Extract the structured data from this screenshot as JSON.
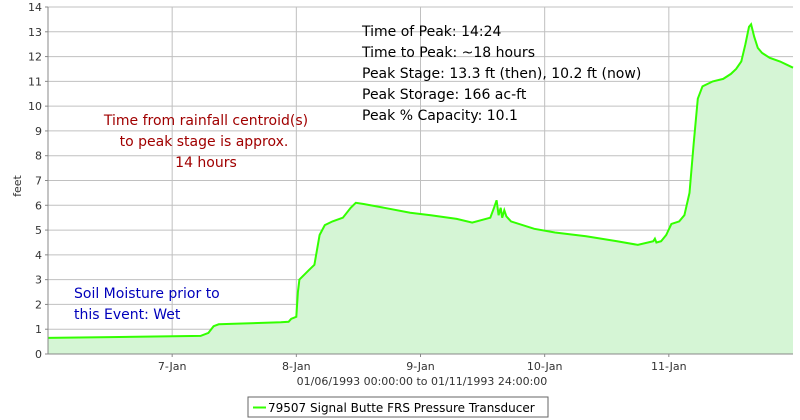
{
  "colors": {
    "fill": "#d5f5d5",
    "line": "#33ff00",
    "grid": "#c0c0c0",
    "axis": "#888888",
    "red_text": "#a00000",
    "blue_text": "#0000bb",
    "black_text": "#000000"
  },
  "chart_data": {
    "type": "area",
    "ylabel": "feet",
    "xlabel": "01/06/1993 00:00:00 to 01/11/1993 24:00:00",
    "ylim": [
      0,
      14
    ],
    "y_ticks": [
      0,
      1,
      2,
      3,
      4,
      5,
      6,
      7,
      8,
      9,
      10,
      11,
      12,
      13,
      14
    ],
    "xlim_hours": [
      0,
      144
    ],
    "x_ticks": [
      {
        "label": "7-Jan",
        "hour": 24
      },
      {
        "label": "8-Jan",
        "hour": 48
      },
      {
        "label": "9-Jan",
        "hour": 72
      },
      {
        "label": "10-Jan",
        "hour": 96
      },
      {
        "label": "11-Jan",
        "hour": 120
      }
    ],
    "grid": true,
    "legend_position": "bottom-center",
    "series": [
      {
        "name": "79507 Signal Butte FRS Pressure Transducer",
        "points": [
          [
            0,
            0.65
          ],
          [
            12,
            0.68
          ],
          [
            29.5,
            0.73
          ],
          [
            31,
            0.85
          ],
          [
            32,
            1.12
          ],
          [
            33,
            1.2
          ],
          [
            36,
            1.22
          ],
          [
            45,
            1.28
          ],
          [
            46.5,
            1.3
          ],
          [
            47,
            1.42
          ],
          [
            48,
            1.5
          ],
          [
            48.3,
            2.5
          ],
          [
            48.6,
            3.0
          ],
          [
            50.5,
            3.4
          ],
          [
            51.5,
            3.6
          ],
          [
            52.5,
            4.8
          ],
          [
            53.5,
            5.2
          ],
          [
            55,
            5.35
          ],
          [
            57,
            5.5
          ],
          [
            58.5,
            5.9
          ],
          [
            59.5,
            6.1
          ],
          [
            61,
            6.05
          ],
          [
            65,
            5.9
          ],
          [
            70,
            5.7
          ],
          [
            74,
            5.6
          ],
          [
            79,
            5.45
          ],
          [
            82,
            5.3
          ],
          [
            85.5,
            5.5
          ],
          [
            86.2,
            5.9
          ],
          [
            86.7,
            6.2
          ],
          [
            87.1,
            5.6
          ],
          [
            87.5,
            5.9
          ],
          [
            87.8,
            5.5
          ],
          [
            88.2,
            5.8
          ],
          [
            88.6,
            5.55
          ],
          [
            89.5,
            5.35
          ],
          [
            94,
            5.05
          ],
          [
            98,
            4.9
          ],
          [
            104,
            4.75
          ],
          [
            110,
            4.55
          ],
          [
            114,
            4.4
          ],
          [
            117,
            4.55
          ],
          [
            117.3,
            4.65
          ],
          [
            117.6,
            4.5
          ],
          [
            118.5,
            4.55
          ],
          [
            119.5,
            4.8
          ],
          [
            120.5,
            5.25
          ],
          [
            122,
            5.35
          ],
          [
            123,
            5.6
          ],
          [
            124,
            6.5
          ],
          [
            124.8,
            8.5
          ],
          [
            125.6,
            10.3
          ],
          [
            126.5,
            10.8
          ],
          [
            128.5,
            11.0
          ],
          [
            130.5,
            11.1
          ],
          [
            132,
            11.3
          ],
          [
            133,
            11.5
          ],
          [
            134,
            11.8
          ],
          [
            134.8,
            12.5
          ],
          [
            135.5,
            13.2
          ],
          [
            135.9,
            13.3
          ],
          [
            136.5,
            12.8
          ],
          [
            137.2,
            12.35
          ],
          [
            138,
            12.15
          ],
          [
            139.5,
            11.95
          ],
          [
            141.5,
            11.8
          ],
          [
            143,
            11.65
          ],
          [
            144,
            11.55
          ]
        ]
      }
    ]
  },
  "annotations": {
    "peak_info": [
      "Time of Peak: 14:24",
      "Time to Peak: ~18 hours",
      "Peak Stage: 13.3 ft (then), 10.2 ft (now)",
      "Peak Storage: 166 ac-ft",
      "Peak % Capacity: 10.1"
    ],
    "centroid_note": [
      "Time from rainfall centroid(s)",
      "to peak stage is approx.",
      "14 hours"
    ],
    "soil_note": [
      "Soil Moisture prior to",
      "this Event: Wet"
    ]
  }
}
